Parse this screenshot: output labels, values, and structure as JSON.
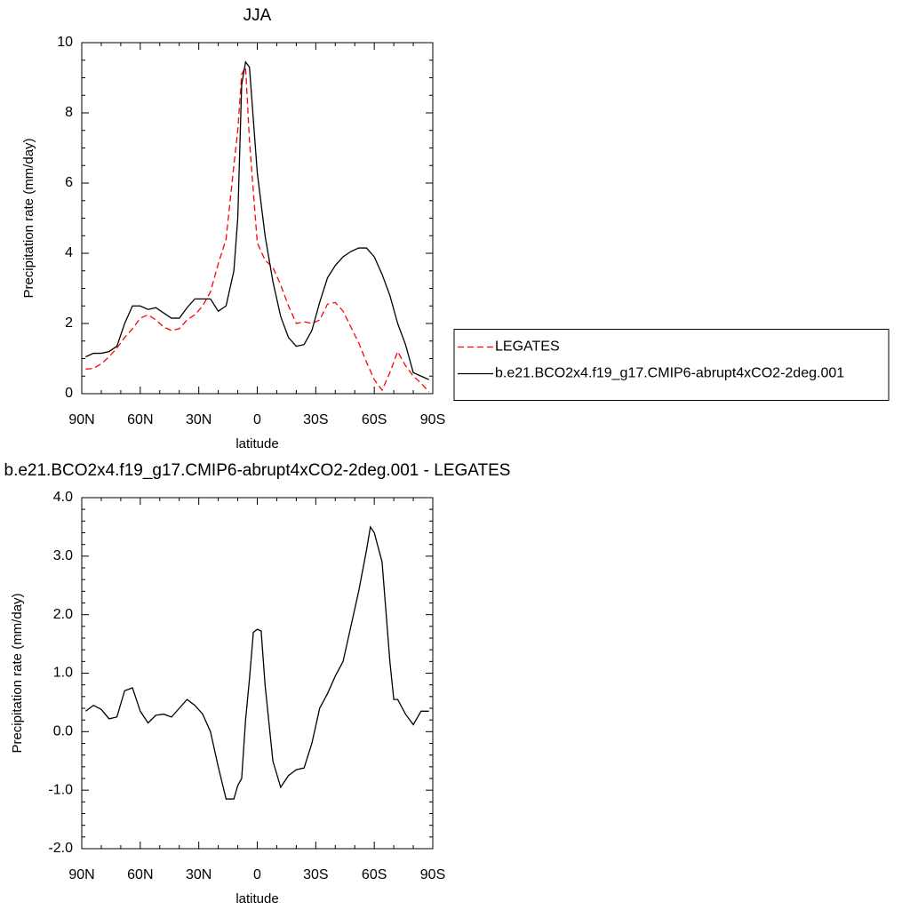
{
  "chart_data": [
    {
      "type": "line",
      "title": "JJA",
      "xlabel": "latitude",
      "ylabel": "Precipitation rate (mm/day)",
      "x": [
        88,
        84,
        80,
        76,
        72,
        68,
        64,
        60,
        56,
        52,
        48,
        44,
        40,
        36,
        32,
        28,
        24,
        20,
        16,
        12,
        10,
        8,
        6,
        4,
        0,
        -4,
        -8,
        -12,
        -16,
        -20,
        -24,
        -28,
        -32,
        -36,
        -40,
        -44,
        -48,
        -52,
        -56,
        -60,
        -64,
        -68,
        -72,
        -76,
        -80,
        -84,
        -88
      ],
      "series": [
        {
          "name": "LEGATES",
          "color": "#ff0000",
          "dashed": true,
          "values": [
            0.7,
            0.72,
            0.85,
            1.05,
            1.3,
            1.6,
            1.85,
            2.15,
            2.25,
            2.1,
            1.9,
            1.8,
            1.85,
            2.1,
            2.25,
            2.5,
            2.9,
            3.7,
            4.4,
            6.5,
            7.5,
            9.1,
            9.3,
            7.2,
            4.3,
            3.8,
            3.6,
            3.1,
            2.5,
            2.0,
            2.05,
            2.0,
            2.1,
            2.55,
            2.6,
            2.35,
            1.9,
            1.45,
            0.9,
            0.4,
            0.1,
            0.6,
            1.2,
            0.8,
            0.5,
            0.3,
            0.05
          ]
        },
        {
          "name": "b.e21.BCO2x4.f19_g17.CMIP6-abrupt4xCO2-2deg.001",
          "color": "#000000",
          "dashed": false,
          "values": [
            1.05,
            1.15,
            1.15,
            1.2,
            1.35,
            2.0,
            2.5,
            2.5,
            2.4,
            2.45,
            2.3,
            2.15,
            2.15,
            2.45,
            2.7,
            2.7,
            2.7,
            2.35,
            2.5,
            3.5,
            5.0,
            8.8,
            9.45,
            9.3,
            6.3,
            4.5,
            3.2,
            2.2,
            1.6,
            1.35,
            1.4,
            1.8,
            2.6,
            3.3,
            3.65,
            3.9,
            4.05,
            4.15,
            4.15,
            3.9,
            3.4,
            2.8,
            2.0,
            1.4,
            0.6,
            0.5,
            0.4
          ]
        }
      ],
      "xlim": [
        90,
        -90
      ],
      "xticks": [
        {
          "value": 90,
          "label": "90N"
        },
        {
          "value": 60,
          "label": "60N"
        },
        {
          "value": 30,
          "label": "30N"
        },
        0,
        {
          "value": -30,
          "label": "30S"
        },
        {
          "value": -60,
          "label": "60S"
        },
        {
          "value": -90,
          "label": "90S"
        }
      ],
      "ylim": [
        0,
        10
      ],
      "yticks": [
        0,
        2,
        4,
        6,
        8,
        10
      ],
      "legend": "outside-right"
    },
    {
      "type": "line",
      "title": "b.e21.BCO2x4.f19_g17.CMIP6-abrupt4xCO2-2deg.001 - LEGATES",
      "xlabel": "latitude",
      "ylabel": "Precipitation rate (mm/day)",
      "x": [
        88,
        84,
        80,
        76,
        72,
        68,
        64,
        60,
        56,
        52,
        48,
        44,
        40,
        36,
        32,
        28,
        24,
        20,
        16,
        12,
        10,
        8,
        6,
        4,
        2,
        0,
        -2,
        -4,
        -8,
        -12,
        -16,
        -20,
        -24,
        -28,
        -32,
        -36,
        -40,
        -44,
        -48,
        -52,
        -56,
        -58,
        -60,
        -64,
        -68,
        -70,
        -72,
        -76,
        -80,
        -84,
        -88
      ],
      "values": [
        0.35,
        0.45,
        0.38,
        0.22,
        0.25,
        0.7,
        0.75,
        0.35,
        0.15,
        0.28,
        0.3,
        0.25,
        0.4,
        0.55,
        0.45,
        0.3,
        0.0,
        -0.6,
        -1.15,
        -1.15,
        -0.92,
        -0.8,
        0.2,
        0.9,
        1.7,
        1.75,
        1.72,
        0.8,
        -0.5,
        -0.95,
        -0.75,
        -0.65,
        -0.62,
        -0.2,
        0.4,
        0.65,
        0.95,
        1.2,
        1.8,
        2.4,
        3.1,
        3.5,
        3.4,
        2.9,
        1.2,
        0.55,
        0.55,
        0.3,
        0.12,
        0.35,
        0.35
      ],
      "color": "#000000",
      "xlim": [
        90,
        -90
      ],
      "xticks": [
        {
          "value": 90,
          "label": "90N"
        },
        {
          "value": 60,
          "label": "60N"
        },
        {
          "value": 30,
          "label": "30N"
        },
        0,
        {
          "value": -30,
          "label": "30S"
        },
        {
          "value": -60,
          "label": "60S"
        },
        {
          "value": -90,
          "label": "90S"
        }
      ],
      "ylim": [
        -2,
        4
      ],
      "yticks": [
        {
          "value": -2,
          "label": "-2.0"
        },
        {
          "value": -1,
          "label": "-1.0"
        },
        {
          "value": 0,
          "label": "0.0"
        },
        {
          "value": 1,
          "label": "1.0"
        },
        {
          "value": 2,
          "label": "2.0"
        },
        {
          "value": 3,
          "label": "3.0"
        },
        {
          "value": 4,
          "label": "4.0"
        }
      ]
    }
  ]
}
